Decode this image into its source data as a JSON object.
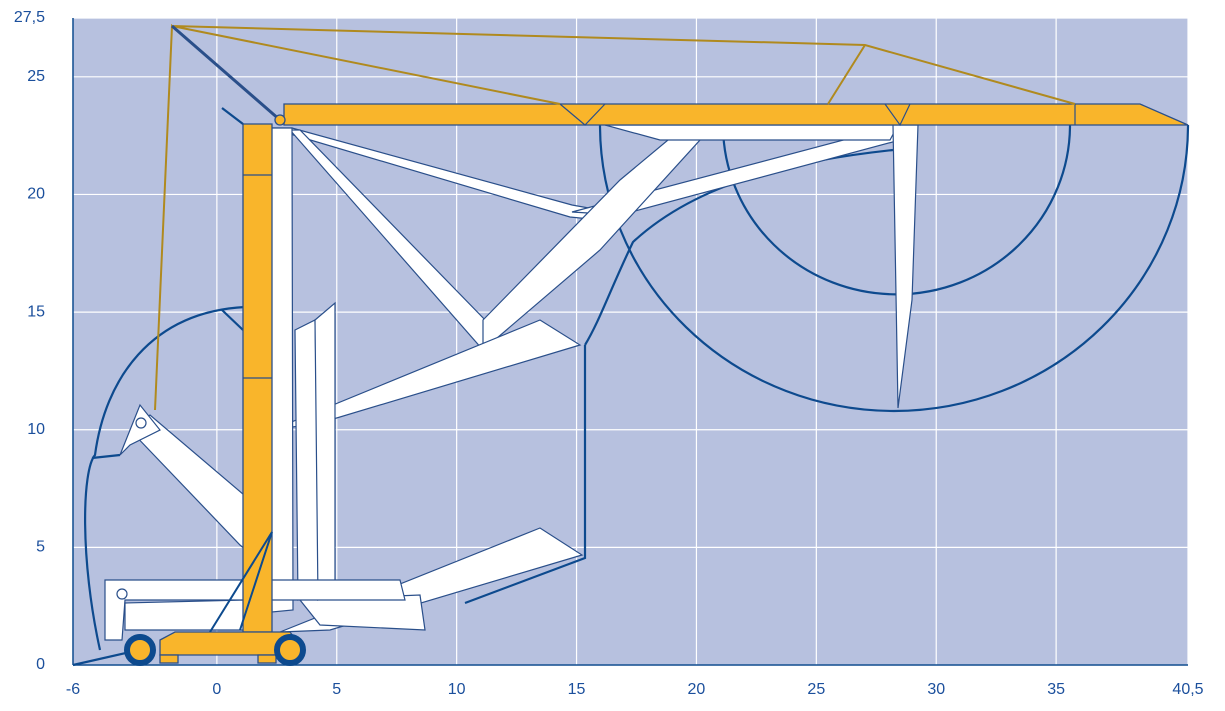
{
  "chart_data": {
    "type": "range-diagram",
    "xlim": [
      -6,
      40.5
    ],
    "ylim": [
      0,
      27.5
    ],
    "xticks": [
      -6,
      0,
      5,
      10,
      15,
      20,
      25,
      30,
      35,
      {
        "value": 40.5,
        "label": "40,5"
      }
    ],
    "yticks": [
      0,
      5,
      10,
      15,
      20,
      25,
      {
        "value": 27.5,
        "label": "27,5"
      }
    ],
    "grid": true
  }
}
